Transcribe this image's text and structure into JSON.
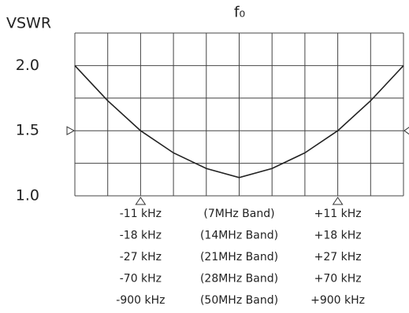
{
  "chart_data": {
    "type": "line",
    "title": "f₀",
    "ylabel": "VSWR",
    "x": [
      -5,
      -4,
      -3,
      -2,
      -1,
      0,
      1,
      2,
      3,
      4,
      5
    ],
    "series": [
      {
        "color": "#222222",
        "values": [
          2.0,
          1.73,
          1.5,
          1.33,
          1.21,
          1.14,
          1.21,
          1.33,
          1.5,
          1.73,
          2.0
        ]
      }
    ],
    "xlim": [
      -5,
      5
    ],
    "ylim": [
      1.0,
      2.25
    ],
    "yticks": [
      {
        "value": 1,
        "label": "1.0"
      },
      1.5,
      {
        "value": 2,
        "label": "2.0"
      }
    ],
    "xgrid": [
      -5,
      -4,
      -3,
      -2,
      -1,
      0,
      1,
      2,
      3,
      4,
      5
    ],
    "ygrid": [
      1,
      1.25,
      1.5,
      1.75,
      2,
      2.25
    ],
    "marker_x": [
      -3,
      3
    ],
    "marker_y": [
      1.5
    ],
    "annotations": [
      [
        "-11 kHz",
        "(7MHz Band)",
        "+11 kHz"
      ],
      [
        "-18 kHz",
        "(14MHz Band)",
        "+18 kHz"
      ],
      [
        "-27 kHz",
        "(21MHz Band)",
        "+27 kHz"
      ],
      [
        "-70 kHz",
        "(28MHz Band)",
        "+70 kHz"
      ],
      [
        "-900 kHz",
        "(50MHz Band)",
        "+900 kHz"
      ]
    ]
  }
}
